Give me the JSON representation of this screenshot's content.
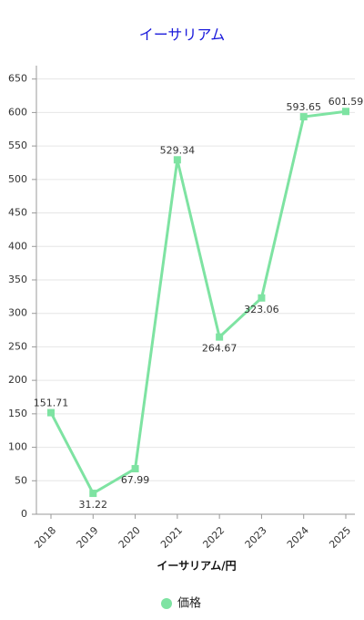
{
  "chart_data": {
    "type": "line",
    "title": "イーサリアム",
    "x_label": "イーサリアム/円",
    "categories": [
      "2018",
      "2019",
      "2020",
      "2021",
      "2022",
      "2023",
      "2024",
      "2025"
    ],
    "series": [
      {
        "name": "価格",
        "color": "#7ee3a2",
        "values": [
          151.71,
          31.22,
          67.99,
          529.34,
          264.67,
          323.06,
          593.65,
          601.59
        ]
      }
    ],
    "ylim": [
      0,
      670
    ],
    "yticks": [
      0,
      50,
      100,
      150,
      200,
      250,
      300,
      350,
      400,
      450,
      500,
      550,
      600,
      650
    ],
    "grid": true
  }
}
